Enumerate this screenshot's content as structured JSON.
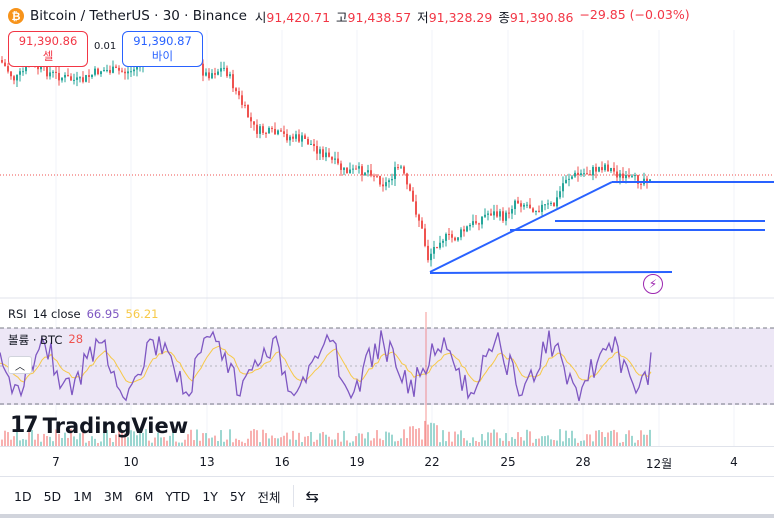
{
  "header": {
    "coin_icon": "bitcoin-icon",
    "title": "Bitcoin / TetherUS · 30 · Binance",
    "open_label": "시",
    "open_value": "91,420.71",
    "high_label": "고",
    "high_value": "91,438.57",
    "low_label": "저",
    "low_value": "91,328.29",
    "close_label": "종",
    "close_value": "91,390.86",
    "change": "−29.85 (−0.03%)"
  },
  "trade": {
    "sell_price": "91,390.86",
    "sell_label": "셀",
    "spread": "0.01",
    "buy_price": "91,390.87",
    "buy_label": "바이"
  },
  "rsi": {
    "label": "RSI",
    "params": "14 close",
    "value": "66.95",
    "ma_value": "56.21"
  },
  "volume": {
    "label": "볼륨 · BTC",
    "value": "28"
  },
  "watermark": "TradingView",
  "xaxis": [
    "7",
    "10",
    "13",
    "16",
    "19",
    "22",
    "25",
    "28",
    "12월",
    "4"
  ],
  "timeframes": [
    "1D",
    "5D",
    "1M",
    "3M",
    "6M",
    "YTD",
    "1Y",
    "5Y",
    "전체"
  ],
  "colors": {
    "up": "#26a69a",
    "down": "#ef5350",
    "trendline": "#2962ff",
    "rsi": "#7e57c2",
    "rsi_ma": "#f7c948",
    "rsi_band": "#ede7f6"
  },
  "icons": {
    "alert": "lightning-alert-icon",
    "calendar": "calendar-range-icon",
    "collapse": "chevron-up-icon"
  }
}
